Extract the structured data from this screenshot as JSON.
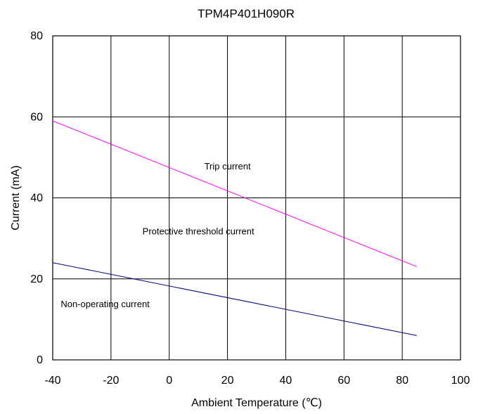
{
  "chart_data": {
    "type": "line",
    "title": "TPM4P401H090R",
    "xlabel": "Ambient Temperature (℃)",
    "ylabel": "Current (mA)",
    "xlim": [
      -40,
      100
    ],
    "ylim": [
      0,
      80
    ],
    "x_ticks": [
      "-40",
      "-20",
      "0",
      "20",
      "40",
      "60",
      "80",
      "100"
    ],
    "y_ticks": [
      "0",
      "20",
      "40",
      "60",
      "80"
    ],
    "grid": true,
    "series": [
      {
        "name": "Trip current",
        "color": "#ff00ff",
        "x": [
          -40,
          85
        ],
        "y": [
          59,
          23
        ]
      },
      {
        "name": "Non-operating current",
        "color": "#000080",
        "x": [
          -40,
          85
        ],
        "y": [
          24,
          6
        ]
      }
    ],
    "annotations": [
      {
        "text": "Trip current",
        "x": 20,
        "y": 47
      },
      {
        "text": "Protective threshold current",
        "x": 10,
        "y": 31
      },
      {
        "text": "Non-operating current",
        "x": -22,
        "y": 13
      }
    ]
  }
}
